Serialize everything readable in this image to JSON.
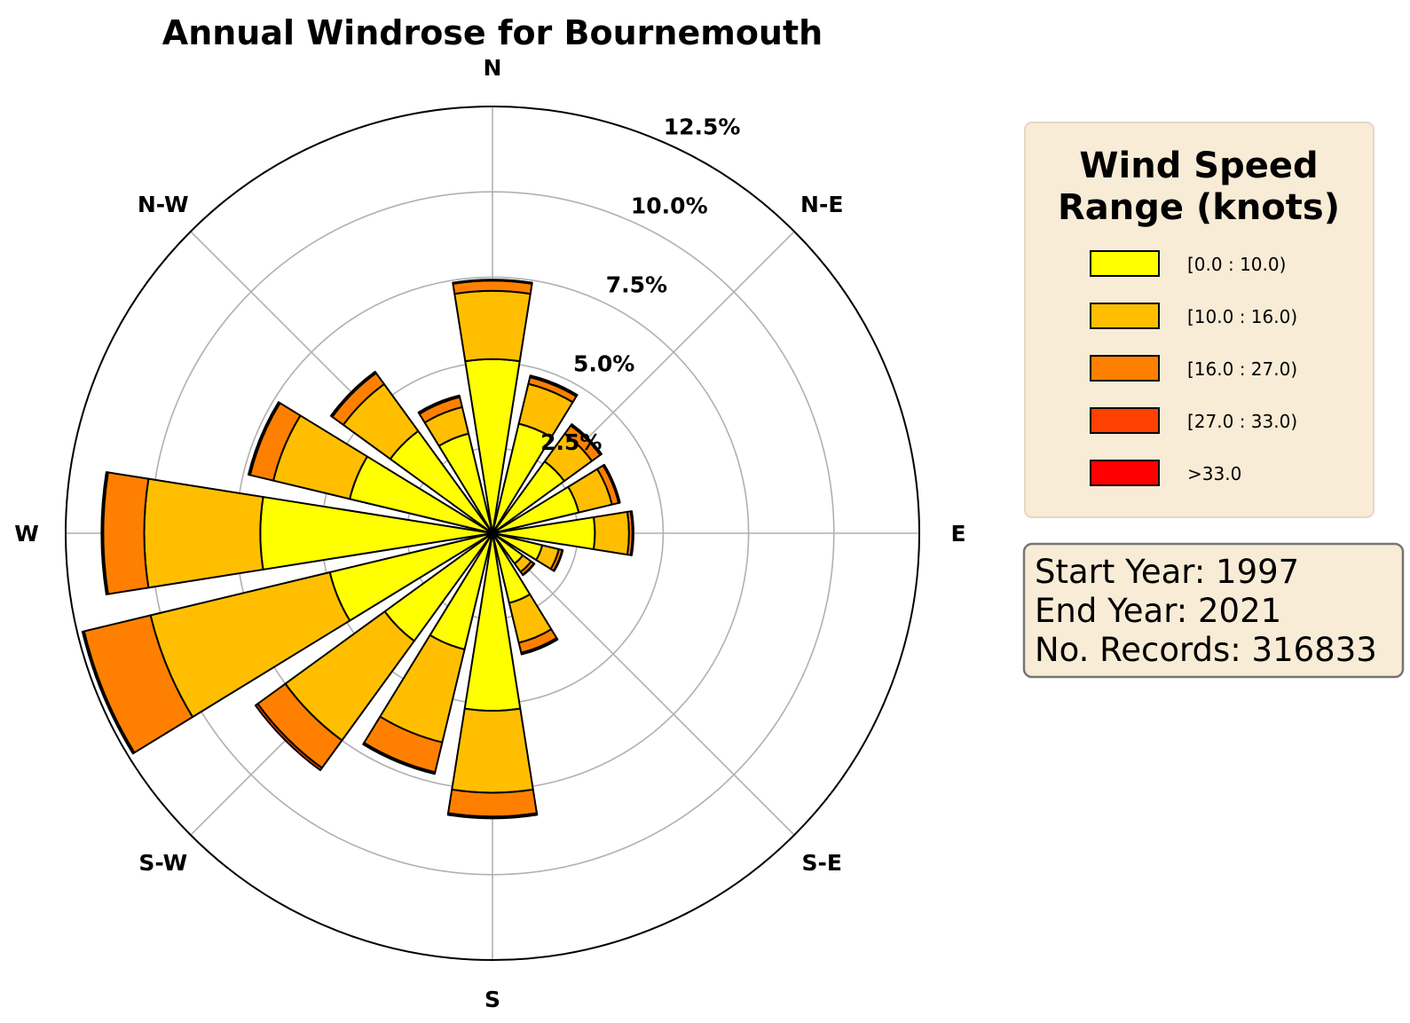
{
  "chart_data": {
    "type": "windrose",
    "title": "Annual Windrose for Bournemouth",
    "directions": [
      "N",
      "NNE",
      "NE",
      "ENE",
      "E",
      "ESE",
      "SE",
      "SSE",
      "S",
      "SSW",
      "SW",
      "WSW",
      "W",
      "WNW",
      "NW",
      "NNW"
    ],
    "compass_labels": [
      "N",
      "N-E",
      "E",
      "S-E",
      "S",
      "S-W",
      "W",
      "N-W"
    ],
    "radial_ticks": [
      2.5,
      5.0,
      7.5,
      10.0,
      12.5
    ],
    "radial_tick_labels": [
      "2.5%",
      "5.0%",
      "7.5%",
      "10.0%",
      "12.5%"
    ],
    "rmax": 12.5,
    "bin_colors": [
      "#ffff00",
      "#ffbf00",
      "#ff8000",
      "#ff4000",
      "#ff0000"
    ],
    "series": [
      {
        "name": "[0.0 : 10.0)",
        "values": [
          5.1,
          3.3,
          2.6,
          2.6,
          3.0,
          1.5,
          1.1,
          2.1,
          5.2,
          3.5,
          3.9,
          4.9,
          6.8,
          4.3,
          3.7,
          3.0
        ]
      },
      {
        "name": "[10.0 : 16.0)",
        "values": [
          2.0,
          1.2,
          1.0,
          1.0,
          1.0,
          0.5,
          0.3,
          1.2,
          2.4,
          2.8,
          3.6,
          5.4,
          3.4,
          2.3,
          1.7,
          0.8
        ]
      },
      {
        "name": "[16.0 : 27.0)",
        "values": [
          0.3,
          0.2,
          0.3,
          0.2,
          0.1,
          0.1,
          0.1,
          0.3,
          0.7,
          0.9,
          1.0,
          2.0,
          1.2,
          0.7,
          0.4,
          0.3
        ]
      },
      {
        "name": "[27.0 : 33.0)",
        "values": [
          0.03,
          0.05,
          0.05,
          0.04,
          0.03,
          0.02,
          0.02,
          0.05,
          0.05,
          0.05,
          0.08,
          0.05,
          0.05,
          0.05,
          0.05,
          0.05
        ]
      },
      {
        "name": ">33.0",
        "values": [
          0,
          0,
          0,
          0,
          0,
          0,
          0,
          0,
          0,
          0,
          0,
          0,
          0,
          0,
          0,
          0
        ]
      }
    ],
    "legend": {
      "title_lines": [
        "Wind Speed",
        "Range (knots)"
      ],
      "placement": "right"
    }
  },
  "info": {
    "start_year": "Start Year: 1997",
    "end_year": "End Year: 2021",
    "records": "No. Records: 316833"
  }
}
